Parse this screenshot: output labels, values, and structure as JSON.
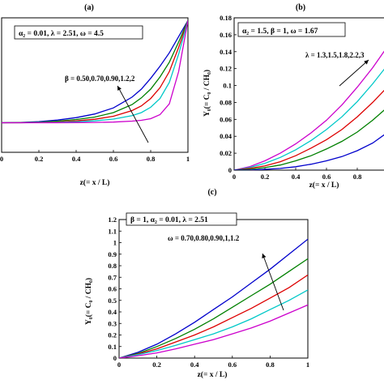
{
  "chart_data": [
    {
      "panel": "(a)",
      "type": "line",
      "xlabel": "z(= x / L)",
      "ylabel": "",
      "xlim": [
        0,
        1
      ],
      "ylim": [
        0,
        1
      ],
      "xticks": [
        "0",
        "0.2",
        "0.4",
        "0.6",
        "0.8",
        "1"
      ],
      "yticks": [],
      "box_text": "α₂ = 0.01, λ = 2.51, ω = 4.5",
      "arrow_text": "β = 0.50,0.70,0.90,1.2,2",
      "series_colors": [
        "#0000cc",
        "#008000",
        "#dd0000",
        "#00c8c8",
        "#cc00cc"
      ],
      "x": [
        0,
        0.1,
        0.2,
        0.3,
        0.4,
        0.5,
        0.6,
        0.7,
        0.75,
        0.8,
        0.85,
        0.9,
        0.95,
        1.0
      ],
      "series": [
        {
          "values": [
            0.22,
            0.222,
            0.228,
            0.24,
            0.258,
            0.285,
            0.33,
            0.41,
            0.47,
            0.55,
            0.64,
            0.74,
            0.86,
            0.98
          ]
        },
        {
          "values": [
            0.22,
            0.221,
            0.224,
            0.232,
            0.244,
            0.262,
            0.295,
            0.355,
            0.405,
            0.47,
            0.56,
            0.67,
            0.82,
            0.98
          ]
        },
        {
          "values": [
            0.22,
            0.22,
            0.222,
            0.226,
            0.234,
            0.246,
            0.268,
            0.31,
            0.345,
            0.4,
            0.48,
            0.6,
            0.78,
            0.98
          ]
        },
        {
          "values": [
            0.22,
            0.22,
            0.221,
            0.223,
            0.227,
            0.234,
            0.247,
            0.272,
            0.295,
            0.335,
            0.4,
            0.52,
            0.73,
            0.98
          ]
        },
        {
          "values": [
            0.22,
            0.22,
            0.22,
            0.22,
            0.221,
            0.222,
            0.225,
            0.232,
            0.238,
            0.25,
            0.28,
            0.36,
            0.6,
            0.98
          ]
        }
      ]
    },
    {
      "panel": "(b)",
      "type": "line",
      "xlabel": "z(= x / L)",
      "ylabel": "Y₀(= C₀ / CH₀)",
      "xlim": [
        0,
        1
      ],
      "ylim": [
        0,
        0.18
      ],
      "xticks": [
        "0",
        "0.2",
        "0.4",
        "0.6",
        "0.8"
      ],
      "yticks": [
        "0",
        "0.02",
        "0.04",
        "0.06",
        "0.08",
        "0.1",
        "0.12",
        "0.14",
        "0.16",
        "0.18"
      ],
      "box_text": "α₂ = 1.5, β = 1, ω = 1.67",
      "arrow_text": "λ = 1.3,1.5,1.8,2.2,3",
      "series_colors": [
        "#cc00cc",
        "#00c8c8",
        "#dd0000",
        "#008000",
        "#0000cc"
      ],
      "x": [
        0,
        0.1,
        0.2,
        0.3,
        0.4,
        0.5,
        0.6,
        0.7,
        0.8,
        0.9,
        1.0
      ],
      "series": [
        {
          "values": [
            0,
            0.004,
            0.011,
            0.02,
            0.031,
            0.044,
            0.059,
            0.077,
            0.098,
            0.121,
            0.147
          ]
        },
        {
          "values": [
            0,
            0.003,
            0.008,
            0.015,
            0.024,
            0.035,
            0.048,
            0.063,
            0.081,
            0.102,
            0.125
          ]
        },
        {
          "values": [
            0,
            0.002,
            0.005,
            0.01,
            0.017,
            0.026,
            0.036,
            0.048,
            0.063,
            0.08,
            0.099
          ]
        },
        {
          "values": [
            0,
            0.001,
            0.003,
            0.006,
            0.011,
            0.017,
            0.025,
            0.034,
            0.045,
            0.059,
            0.075
          ]
        },
        {
          "values": [
            0,
            0,
            0.001,
            0.002,
            0.004,
            0.007,
            0.011,
            0.016,
            0.023,
            0.032,
            0.045
          ]
        }
      ]
    },
    {
      "panel": "(c)",
      "type": "line",
      "xlabel": "z(= x / L)",
      "ylabel": "Y₀(= C₀ / CH₀)",
      "xlim": [
        0,
        1
      ],
      "ylim": [
        0,
        1.2
      ],
      "xticks": [
        "0",
        "0.2",
        "0.4",
        "0.6",
        "0.8",
        "1"
      ],
      "yticks": [
        "0",
        "0.1",
        "0.2",
        "0.3",
        "0.4",
        "0.5",
        "0.6",
        "0.7",
        "0.8",
        "0.9",
        "1",
        "1.1",
        "1.2"
      ],
      "box_text": "β = 1, α₂ = 0.01, λ = 2.51",
      "arrow_text": "ω = 0.70,0.80,0.90,1,1.2",
      "series_colors": [
        "#0000cc",
        "#008000",
        "#dd0000",
        "#00c8c8",
        "#cc00cc"
      ],
      "x": [
        0,
        0.1,
        0.2,
        0.3,
        0.4,
        0.5,
        0.6,
        0.7,
        0.8,
        0.9,
        1.0
      ],
      "series": [
        {
          "values": [
            0,
            0.05,
            0.12,
            0.21,
            0.31,
            0.42,
            0.53,
            0.65,
            0.77,
            0.9,
            1.03
          ]
        },
        {
          "values": [
            0,
            0.04,
            0.1,
            0.17,
            0.25,
            0.34,
            0.44,
            0.54,
            0.64,
            0.75,
            0.86
          ]
        },
        {
          "values": [
            0,
            0.035,
            0.08,
            0.14,
            0.2,
            0.27,
            0.35,
            0.43,
            0.52,
            0.61,
            0.72
          ]
        },
        {
          "values": [
            0,
            0.03,
            0.065,
            0.11,
            0.16,
            0.21,
            0.27,
            0.34,
            0.42,
            0.5,
            0.59
          ]
        },
        {
          "values": [
            0,
            0.02,
            0.045,
            0.08,
            0.12,
            0.16,
            0.21,
            0.26,
            0.32,
            0.39,
            0.46
          ]
        }
      ]
    }
  ]
}
